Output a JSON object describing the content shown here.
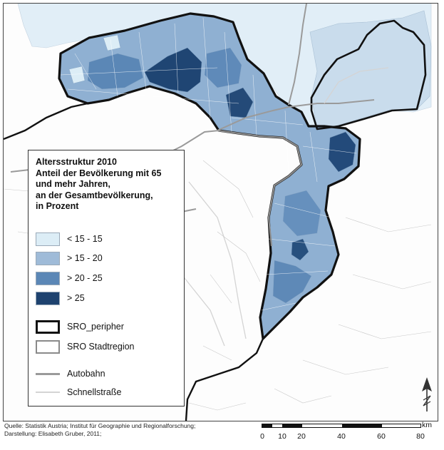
{
  "legend": {
    "title_lines": [
      "Altersstruktur 2010",
      "Anteil der Bevölkerung mit 65",
      "und mehr Jahren,",
      "an der Gesamtbevölkerung,",
      "in Prozent"
    ],
    "classes": [
      {
        "label": "< 15 - 15",
        "color": "#dcedf6"
      },
      {
        "label": "> 15 - 20",
        "color": "#9fbbd8"
      },
      {
        "label": "> 20 - 25",
        "color": "#5b87b6"
      },
      {
        "label": "> 25",
        "color": "#1e426f"
      }
    ],
    "boundaries": [
      {
        "label": "SRO_peripher"
      },
      {
        "label": "SRO Stadtregion"
      }
    ],
    "roads": [
      {
        "label": "Autobahn",
        "color": "#9a9a9a"
      },
      {
        "label": "Schnellstraße",
        "color": "#d4d4d4"
      }
    ]
  },
  "source": {
    "line1": "Quelle: Statistik Austria; Institut für Geographie und Regionalforschung;",
    "line2": "Darstellung: Elisabeth Gruber, 2011;"
  },
  "scale": {
    "ticks": [
      "0",
      "10",
      "20",
      "40",
      "60",
      "80"
    ],
    "unit": "km"
  },
  "map": {
    "background_color": "#ffffff",
    "outline_color": "#111111"
  }
}
